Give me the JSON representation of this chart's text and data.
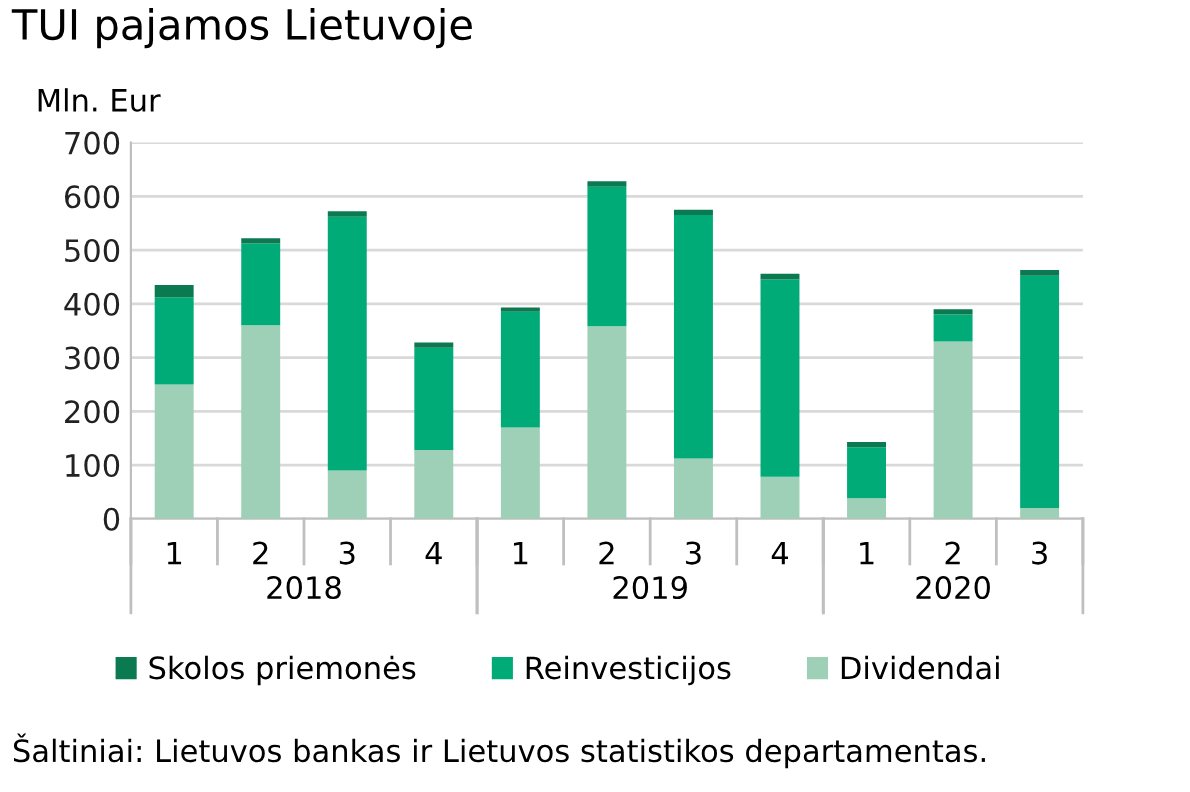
{
  "chart_data": {
    "type": "bar",
    "title": "TUI pajamos Lietuvoje",
    "ylabel": "Mln. Eur",
    "stacked": true,
    "categories": [
      "1",
      "2",
      "3",
      "4",
      "1",
      "2",
      "3",
      "4",
      "1",
      "2",
      "3"
    ],
    "series": [
      {
        "name": "Dividendai",
        "color": "#9ecfb7",
        "values": [
          250,
          360,
          90,
          128,
          170,
          358,
          112,
          78,
          38,
          330,
          20
        ]
      },
      {
        "name": "Reinvesticijos",
        "color": "#00ab78",
        "values": [
          162,
          152,
          472,
          190,
          215,
          260,
          453,
          367,
          95,
          50,
          432
        ]
      },
      {
        "name": "Skolos priemonės",
        "color": "#0b7a50",
        "values": [
          23,
          10,
          10,
          10,
          8,
          10,
          10,
          11,
          10,
          10,
          11
        ]
      }
    ],
    "ylim": [
      0,
      700
    ],
    "yticks": [
      0,
      100,
      200,
      300,
      400,
      500,
      600,
      700
    ],
    "grid": "y",
    "legend": "bottom",
    "annotations": [
      "2018",
      "2019",
      "2020",
      "Šaltiniai: Lietuvos bankas ir Lietuvos statistikos departamentas."
    ]
  }
}
